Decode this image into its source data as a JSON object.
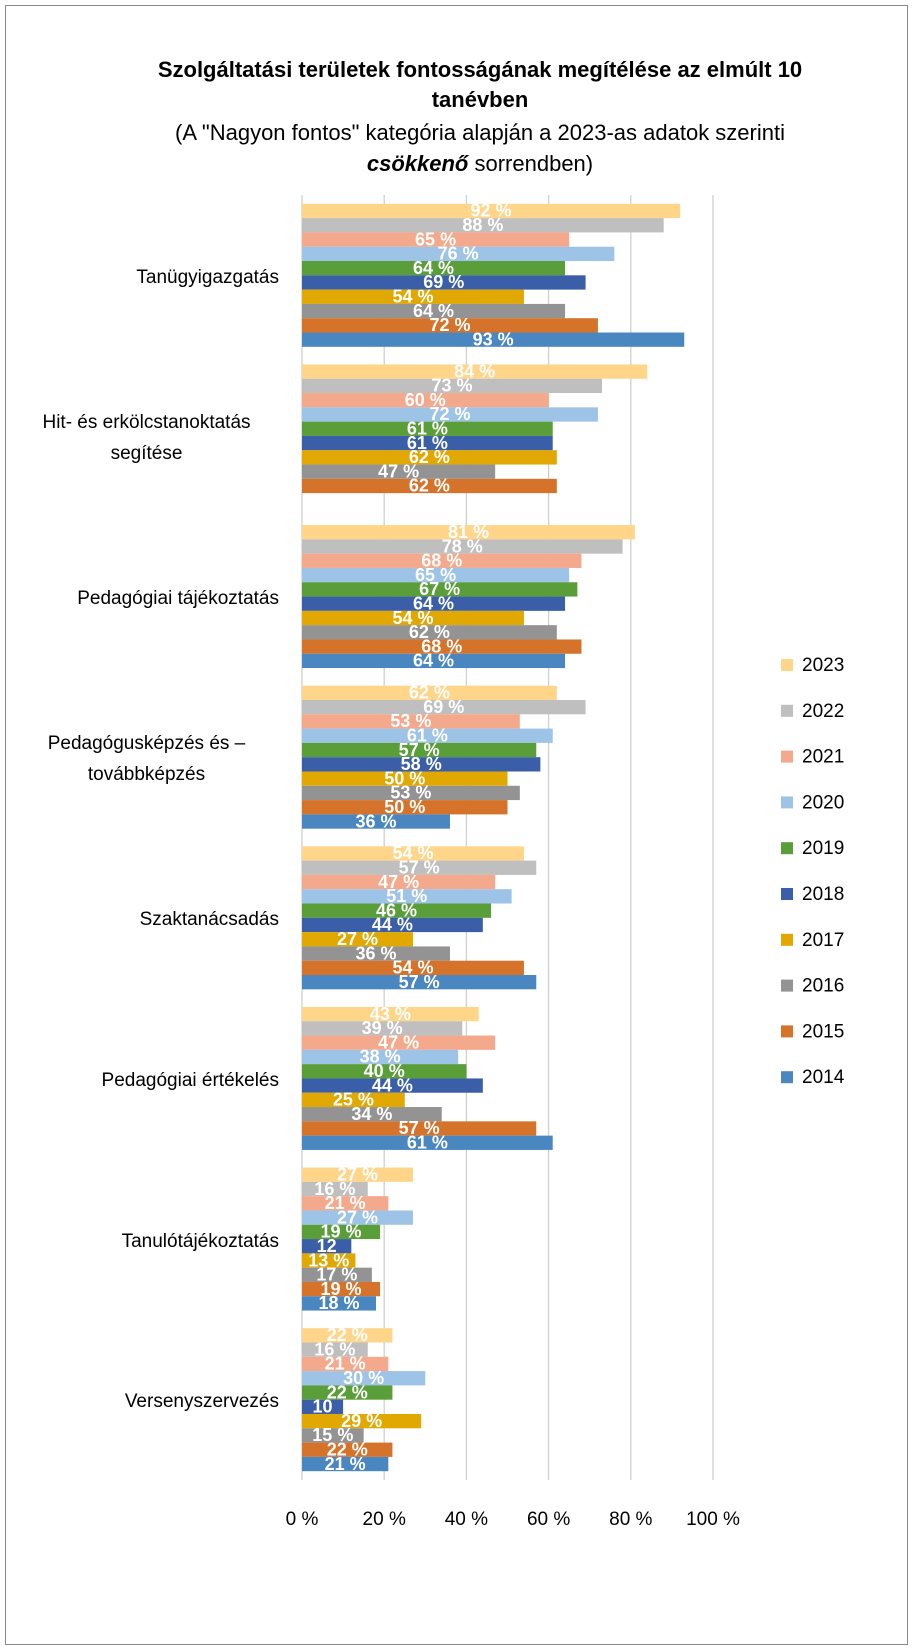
{
  "chart_data": {
    "type": "bar",
    "orientation": "horizontal",
    "title": "Szolgáltatási területek fontosságának megítélése az elmúlt 10 tanévben",
    "subtitle": [
      "(A \"Nagyon fontos\" kategória alapján a 2023-as adatok szerinti",
      "csökkenő",
      "sorrendben)"
    ],
    "categories": [
      "Tanügyigazgatás",
      "Hit- és erkölcstanoktatás segítése",
      "Pedagógiai tájékoztatás",
      "Pedagógusképzés és – továbbképzés",
      "Szaktanácsadás",
      "Pedagógiai értékelés",
      "Tanulótájékoztatás",
      "Versenyszervezés"
    ],
    "series": [
      {
        "name": "2023",
        "color": "#ffd58a",
        "values": [
          92,
          84,
          81,
          62,
          54,
          43,
          27,
          22
        ],
        "value_labels": [
          "92 %",
          "84 %",
          "81 %",
          "62 %",
          "54 %",
          "43 %",
          "27 %",
          "22 %"
        ]
      },
      {
        "name": "2022",
        "color": "#bfbfbf",
        "values": [
          88,
          73,
          78,
          69,
          57,
          39,
          16,
          16
        ],
        "value_labels": [
          "88 %",
          "73 %",
          "78 %",
          "69 %",
          "57 %",
          "39 %",
          "16 %",
          "16 %"
        ]
      },
      {
        "name": "2021",
        "color": "#f4a98c",
        "values": [
          65,
          60,
          68,
          53,
          47,
          47,
          21,
          21
        ],
        "value_labels": [
          "65 %",
          "60 %",
          "68 %",
          "53 %",
          "47 %",
          "47 %",
          "21 %",
          "21 %"
        ]
      },
      {
        "name": "2020",
        "color": "#9dc3e6",
        "values": [
          76,
          72,
          65,
          61,
          51,
          38,
          27,
          30
        ],
        "value_labels": [
          "76 %",
          "72 %",
          "65 %",
          "61 %",
          "51 %",
          "38 %",
          "27 %",
          "30 %"
        ]
      },
      {
        "name": "2019",
        "color": "#5a9e3a",
        "values": [
          64,
          61,
          67,
          57,
          46,
          40,
          19,
          22
        ],
        "value_labels": [
          "64 %",
          "61 %",
          "67 %",
          "57 %",
          "46 %",
          "40 %",
          "19 %",
          "22 %"
        ]
      },
      {
        "name": "2018",
        "color": "#3a5ea8",
        "values": [
          69,
          61,
          64,
          58,
          44,
          44,
          12,
          10
        ],
        "value_labels": [
          "69 %",
          "61 %",
          "64 %",
          "58 %",
          "44 %",
          "44 %",
          "12",
          "10"
        ]
      },
      {
        "name": "2017",
        "color": "#e0a800",
        "values": [
          54,
          62,
          54,
          50,
          27,
          25,
          13,
          29
        ],
        "value_labels": [
          "54 %",
          "62 %",
          "54 %",
          "50 %",
          "27 %",
          "25 %",
          "13 %",
          "29 %"
        ]
      },
      {
        "name": "2016",
        "color": "#939393",
        "values": [
          64,
          47,
          62,
          53,
          36,
          34,
          17,
          15
        ],
        "value_labels": [
          "64 %",
          "47 %",
          "62 %",
          "53 %",
          "36 %",
          "34 %",
          "17 %",
          "15 %"
        ]
      },
      {
        "name": "2015",
        "color": "#d5732b",
        "values": [
          72,
          62,
          68,
          50,
          54,
          57,
          19,
          22
        ],
        "value_labels": [
          "72 %",
          "62 %",
          "68 %",
          "50 %",
          "54 %",
          "57 %",
          "19 %",
          "22 %"
        ]
      },
      {
        "name": "2014",
        "color": "#4a86c0",
        "values": [
          93,
          null,
          64,
          36,
          57,
          61,
          18,
          21
        ],
        "value_labels": [
          "93 %",
          null,
          "64 %",
          "36 %",
          "57 %",
          "61 %",
          "18 %",
          "21 %"
        ]
      }
    ],
    "xlim": [
      0,
      100
    ],
    "xticks": [
      {
        "value": 0,
        "label": "0 %"
      },
      {
        "value": 20,
        "label": "20 %"
      },
      {
        "value": 40,
        "label": "40 %"
      },
      {
        "value": 60,
        "label": "60 %"
      },
      {
        "value": 80,
        "label": "80 %"
      },
      {
        "value": 100,
        "label": "100 %"
      }
    ],
    "grid": true,
    "legend": "right"
  }
}
